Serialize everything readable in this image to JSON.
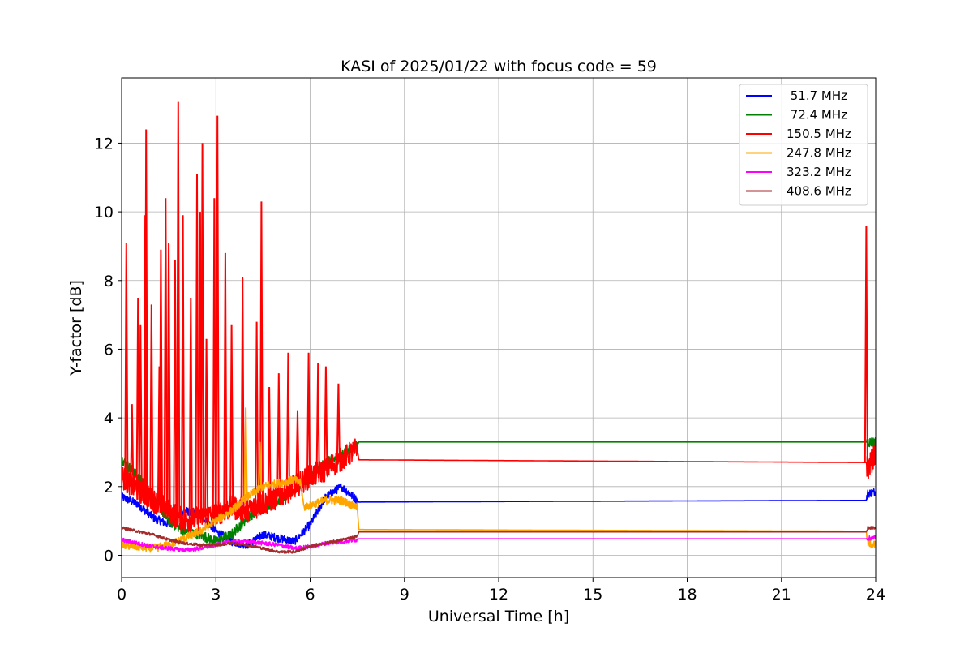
{
  "chart_data": {
    "type": "line",
    "title": "KASI of 2025/01/22 with focus code = 59",
    "xlabel": "Universal Time [h]",
    "ylabel": "Y-factor [dB]",
    "xlim": [
      0,
      24
    ],
    "ylim": [
      -0.65,
      13.9
    ],
    "xticks": [
      0,
      3,
      6,
      9,
      12,
      15,
      18,
      21,
      24
    ],
    "yticks": [
      0,
      2,
      4,
      6,
      8,
      10,
      12
    ],
    "grid": true,
    "legend_position": "top-right",
    "series": [
      {
        "name": " 51.7 MHz",
        "color": "#0000ff",
        "points": [
          [
            0,
            1.7
          ],
          [
            0.5,
            1.5
          ],
          [
            1,
            1.1
          ],
          [
            1.5,
            0.9
          ],
          [
            2,
            1.3
          ],
          [
            2.5,
            1.2
          ],
          [
            3,
            0.7
          ],
          [
            3.5,
            0.4
          ],
          [
            4,
            0.3
          ],
          [
            4.5,
            0.6
          ],
          [
            5,
            0.5
          ],
          [
            5.5,
            0.4
          ],
          [
            6,
            0.9
          ],
          [
            6.5,
            1.7
          ],
          [
            7,
            2.0
          ],
          [
            7.5,
            1.6
          ],
          [
            7.55,
            1.55
          ],
          [
            23.7,
            1.6
          ],
          [
            23.75,
            1.8
          ],
          [
            24,
            1.85
          ]
        ],
        "noise": 0.12
      },
      {
        "name": " 72.4 MHz",
        "color": "#008000",
        "points": [
          [
            0,
            2.8
          ],
          [
            0.5,
            2.3
          ],
          [
            1,
            1.7
          ],
          [
            1.5,
            1.0
          ],
          [
            2,
            0.7
          ],
          [
            2.5,
            0.6
          ],
          [
            3,
            0.4
          ],
          [
            3.5,
            0.6
          ],
          [
            4,
            1.1
          ],
          [
            4.5,
            1.4
          ],
          [
            5,
            1.6
          ],
          [
            5.5,
            1.9
          ],
          [
            6,
            2.3
          ],
          [
            6.5,
            2.7
          ],
          [
            7,
            2.9
          ],
          [
            7.5,
            3.2
          ],
          [
            7.55,
            3.3
          ],
          [
            23.7,
            3.3
          ],
          [
            23.75,
            3.3
          ],
          [
            24,
            3.3
          ]
        ],
        "noise": 0.15
      },
      {
        "name": "150.5 MHz",
        "color": "#ff0000",
        "points": [
          [
            0,
            2.3
          ],
          [
            0.5,
            1.9
          ],
          [
            1,
            1.6
          ],
          [
            1.5,
            1.3
          ],
          [
            2,
            1.0
          ],
          [
            2.5,
            1.1
          ],
          [
            3,
            1.2
          ],
          [
            3.5,
            1.4
          ],
          [
            4,
            1.3
          ],
          [
            4.5,
            1.5
          ],
          [
            5,
            1.7
          ],
          [
            5.5,
            2.0
          ],
          [
            6,
            2.3
          ],
          [
            6.5,
            2.5
          ],
          [
            7,
            2.8
          ],
          [
            7.5,
            3.1
          ],
          [
            7.55,
            2.78
          ],
          [
            23.7,
            2.7
          ],
          [
            23.75,
            2.5
          ],
          [
            24,
            3.0
          ]
        ],
        "noise": 0.35,
        "spikes": [
          [
            0.15,
            9.1
          ],
          [
            0.33,
            4.4
          ],
          [
            0.52,
            7.5
          ],
          [
            0.6,
            6.7
          ],
          [
            0.75,
            9.9
          ],
          [
            0.78,
            12.4
          ],
          [
            0.95,
            7.3
          ],
          [
            1.2,
            5.5
          ],
          [
            1.25,
            8.9
          ],
          [
            1.4,
            10.4
          ],
          [
            1.5,
            9.1
          ],
          [
            1.7,
            8.6
          ],
          [
            1.8,
            13.2
          ],
          [
            1.95,
            9.9
          ],
          [
            2.2,
            7.5
          ],
          [
            2.4,
            11.1
          ],
          [
            2.5,
            10.0
          ],
          [
            2.57,
            12.0
          ],
          [
            2.7,
            6.3
          ],
          [
            2.95,
            10.4
          ],
          [
            3.05,
            12.8
          ],
          [
            3.3,
            8.8
          ],
          [
            3.5,
            6.7
          ],
          [
            3.85,
            8.1
          ],
          [
            4.3,
            6.8
          ],
          [
            4.45,
            10.3
          ],
          [
            4.7,
            4.9
          ],
          [
            5.0,
            5.3
          ],
          [
            5.3,
            5.9
          ],
          [
            5.6,
            4.2
          ],
          [
            5.95,
            5.9
          ],
          [
            6.25,
            5.6
          ],
          [
            6.5,
            5.5
          ],
          [
            6.9,
            5.0
          ],
          [
            23.7,
            9.6
          ]
        ]
      },
      {
        "name": "247.8 MHz",
        "color": "#ffa500",
        "points": [
          [
            0,
            0.3
          ],
          [
            0.5,
            0.25
          ],
          [
            1,
            0.2
          ],
          [
            1.5,
            0.3
          ],
          [
            2,
            0.5
          ],
          [
            2.5,
            0.7
          ],
          [
            3,
            1.0
          ],
          [
            3.5,
            1.3
          ],
          [
            4,
            1.7
          ],
          [
            4.5,
            2.0
          ],
          [
            5,
            2.1
          ],
          [
            5.5,
            2.2
          ],
          [
            5.7,
            2.1
          ],
          [
            5.8,
            1.4
          ],
          [
            6.5,
            1.6
          ],
          [
            7,
            1.6
          ],
          [
            7.5,
            1.4
          ],
          [
            7.55,
            0.75
          ],
          [
            23.7,
            0.7
          ],
          [
            23.75,
            0.35
          ],
          [
            24,
            0.3
          ]
        ],
        "noise": 0.12,
        "spikes": [
          [
            3.95,
            4.3
          ],
          [
            4.4,
            3.3
          ]
        ]
      },
      {
        "name": "323.2 MHz",
        "color": "#ff00ff",
        "points": [
          [
            0,
            0.45
          ],
          [
            0.5,
            0.35
          ],
          [
            1,
            0.25
          ],
          [
            1.5,
            0.2
          ],
          [
            2,
            0.15
          ],
          [
            2.5,
            0.2
          ],
          [
            3,
            0.3
          ],
          [
            3.5,
            0.4
          ],
          [
            4,
            0.4
          ],
          [
            4.5,
            0.35
          ],
          [
            5,
            0.3
          ],
          [
            5.5,
            0.2
          ],
          [
            6,
            0.25
          ],
          [
            6.5,
            0.35
          ],
          [
            7,
            0.4
          ],
          [
            7.5,
            0.45
          ],
          [
            7.55,
            0.48
          ],
          [
            23.7,
            0.48
          ],
          [
            23.75,
            0.5
          ],
          [
            24,
            0.5
          ]
        ],
        "noise": 0.06
      },
      {
        "name": "408.6 MHz",
        "color": "#a52a2a",
        "points": [
          [
            0,
            0.8
          ],
          [
            0.5,
            0.7
          ],
          [
            1,
            0.6
          ],
          [
            1.5,
            0.45
          ],
          [
            2,
            0.35
          ],
          [
            2.5,
            0.3
          ],
          [
            3,
            0.3
          ],
          [
            3.5,
            0.35
          ],
          [
            4,
            0.3
          ],
          [
            4.5,
            0.2
          ],
          [
            5,
            0.1
          ],
          [
            5.5,
            0.1
          ],
          [
            6,
            0.25
          ],
          [
            6.5,
            0.35
          ],
          [
            7,
            0.45
          ],
          [
            7.5,
            0.55
          ],
          [
            7.55,
            0.68
          ],
          [
            23.7,
            0.68
          ],
          [
            23.75,
            0.8
          ],
          [
            24,
            0.8
          ]
        ],
        "noise": 0.04
      }
    ]
  }
}
